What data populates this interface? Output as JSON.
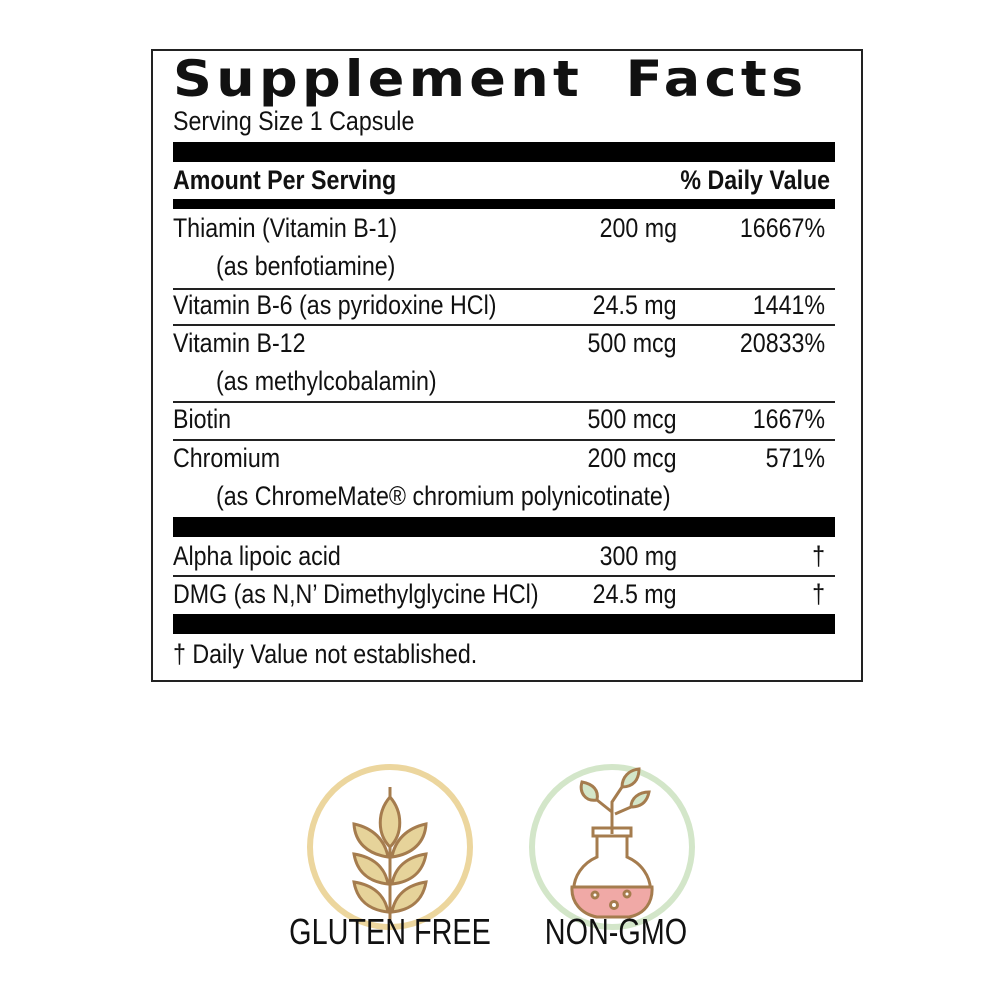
{
  "title": "Supplement Facts",
  "serving_size": "Serving Size 1 Capsule",
  "header": {
    "amount": "Amount Per Serving",
    "dv": "% Daily Value"
  },
  "rows": [
    {
      "name": "Thiamin (Vitamin B-1)",
      "sub": "(as benfotiamine)",
      "amount": "200 mg",
      "dv": "16667%"
    },
    {
      "name": "Vitamin B-6 (as pyridoxine HCl)",
      "amount": "24.5 mg",
      "dv": "1441%"
    },
    {
      "name": "Vitamin B-12",
      "sub": "(as methylcobalamin)",
      "amount": "500 mcg",
      "dv": "20833%"
    },
    {
      "name": "Biotin",
      "amount": "500 mcg",
      "dv": "1667%"
    },
    {
      "name": "Chromium",
      "sub": "(as ChromeMate® chromium polynicotinate)",
      "amount": "200 mcg",
      "dv": "571%"
    }
  ],
  "other_rows": [
    {
      "name": "Alpha lipoic acid",
      "amount": "300 mg",
      "dv": "†"
    },
    {
      "name": "DMG (as N,N’ Dimethylglycine HCl)",
      "amount": "24.5 mg",
      "dv": "†"
    }
  ],
  "footnote": "† Daily Value not established.",
  "badges": [
    {
      "label": "GLUTEN FREE",
      "icon": "wheat-icon",
      "ring_color": "#ecd69e"
    },
    {
      "label": "NON-GMO",
      "icon": "flask-plant-icon",
      "ring_color": "#d3e6c9"
    }
  ]
}
